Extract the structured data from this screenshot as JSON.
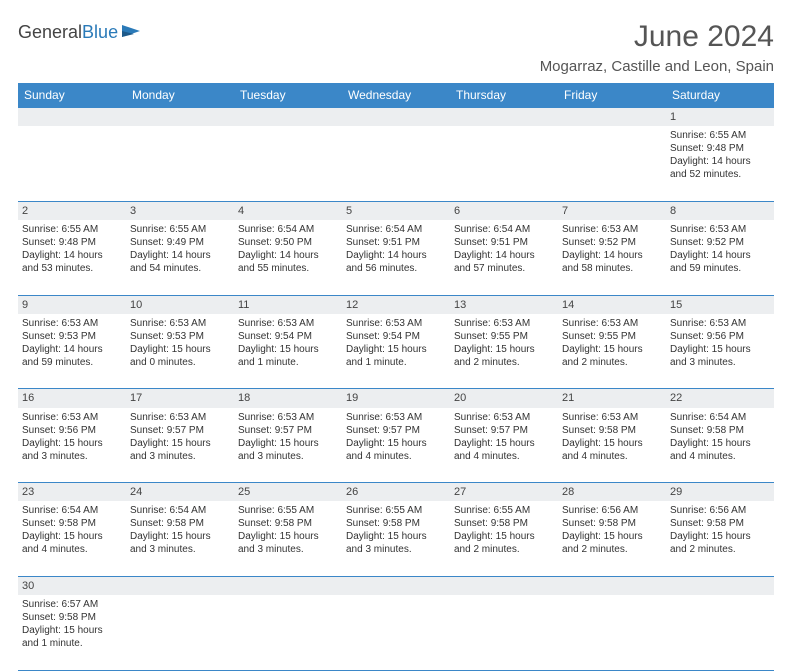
{
  "brand": {
    "part1": "General",
    "part2": "Blue"
  },
  "title": "June 2024",
  "location": "Mogarraz, Castille and Leon, Spain",
  "header_bg": "#3b87c8",
  "daynum_bg": "#eceef0",
  "days": [
    "Sunday",
    "Monday",
    "Tuesday",
    "Wednesday",
    "Thursday",
    "Friday",
    "Saturday"
  ],
  "weeks": [
    {
      "nums": [
        "",
        "",
        "",
        "",
        "",
        "",
        "1"
      ],
      "cells": [
        null,
        null,
        null,
        null,
        null,
        null,
        {
          "sunrise": "6:55 AM",
          "sunset": "9:48 PM",
          "daylight": "14 hours and 52 minutes."
        }
      ]
    },
    {
      "nums": [
        "2",
        "3",
        "4",
        "5",
        "6",
        "7",
        "8"
      ],
      "cells": [
        {
          "sunrise": "6:55 AM",
          "sunset": "9:48 PM",
          "daylight": "14 hours and 53 minutes."
        },
        {
          "sunrise": "6:55 AM",
          "sunset": "9:49 PM",
          "daylight": "14 hours and 54 minutes."
        },
        {
          "sunrise": "6:54 AM",
          "sunset": "9:50 PM",
          "daylight": "14 hours and 55 minutes."
        },
        {
          "sunrise": "6:54 AM",
          "sunset": "9:51 PM",
          "daylight": "14 hours and 56 minutes."
        },
        {
          "sunrise": "6:54 AM",
          "sunset": "9:51 PM",
          "daylight": "14 hours and 57 minutes."
        },
        {
          "sunrise": "6:53 AM",
          "sunset": "9:52 PM",
          "daylight": "14 hours and 58 minutes."
        },
        {
          "sunrise": "6:53 AM",
          "sunset": "9:52 PM",
          "daylight": "14 hours and 59 minutes."
        }
      ]
    },
    {
      "nums": [
        "9",
        "10",
        "11",
        "12",
        "13",
        "14",
        "15"
      ],
      "cells": [
        {
          "sunrise": "6:53 AM",
          "sunset": "9:53 PM",
          "daylight": "14 hours and 59 minutes."
        },
        {
          "sunrise": "6:53 AM",
          "sunset": "9:53 PM",
          "daylight": "15 hours and 0 minutes."
        },
        {
          "sunrise": "6:53 AM",
          "sunset": "9:54 PM",
          "daylight": "15 hours and 1 minute."
        },
        {
          "sunrise": "6:53 AM",
          "sunset": "9:54 PM",
          "daylight": "15 hours and 1 minute."
        },
        {
          "sunrise": "6:53 AM",
          "sunset": "9:55 PM",
          "daylight": "15 hours and 2 minutes."
        },
        {
          "sunrise": "6:53 AM",
          "sunset": "9:55 PM",
          "daylight": "15 hours and 2 minutes."
        },
        {
          "sunrise": "6:53 AM",
          "sunset": "9:56 PM",
          "daylight": "15 hours and 3 minutes."
        }
      ]
    },
    {
      "nums": [
        "16",
        "17",
        "18",
        "19",
        "20",
        "21",
        "22"
      ],
      "cells": [
        {
          "sunrise": "6:53 AM",
          "sunset": "9:56 PM",
          "daylight": "15 hours and 3 minutes."
        },
        {
          "sunrise": "6:53 AM",
          "sunset": "9:57 PM",
          "daylight": "15 hours and 3 minutes."
        },
        {
          "sunrise": "6:53 AM",
          "sunset": "9:57 PM",
          "daylight": "15 hours and 3 minutes."
        },
        {
          "sunrise": "6:53 AM",
          "sunset": "9:57 PM",
          "daylight": "15 hours and 4 minutes."
        },
        {
          "sunrise": "6:53 AM",
          "sunset": "9:57 PM",
          "daylight": "15 hours and 4 minutes."
        },
        {
          "sunrise": "6:53 AM",
          "sunset": "9:58 PM",
          "daylight": "15 hours and 4 minutes."
        },
        {
          "sunrise": "6:54 AM",
          "sunset": "9:58 PM",
          "daylight": "15 hours and 4 minutes."
        }
      ]
    },
    {
      "nums": [
        "23",
        "24",
        "25",
        "26",
        "27",
        "28",
        "29"
      ],
      "cells": [
        {
          "sunrise": "6:54 AM",
          "sunset": "9:58 PM",
          "daylight": "15 hours and 4 minutes."
        },
        {
          "sunrise": "6:54 AM",
          "sunset": "9:58 PM",
          "daylight": "15 hours and 3 minutes."
        },
        {
          "sunrise": "6:55 AM",
          "sunset": "9:58 PM",
          "daylight": "15 hours and 3 minutes."
        },
        {
          "sunrise": "6:55 AM",
          "sunset": "9:58 PM",
          "daylight": "15 hours and 3 minutes."
        },
        {
          "sunrise": "6:55 AM",
          "sunset": "9:58 PM",
          "daylight": "15 hours and 2 minutes."
        },
        {
          "sunrise": "6:56 AM",
          "sunset": "9:58 PM",
          "daylight": "15 hours and 2 minutes."
        },
        {
          "sunrise": "6:56 AM",
          "sunset": "9:58 PM",
          "daylight": "15 hours and 2 minutes."
        }
      ]
    },
    {
      "nums": [
        "30",
        "",
        "",
        "",
        "",
        "",
        ""
      ],
      "cells": [
        {
          "sunrise": "6:57 AM",
          "sunset": "9:58 PM",
          "daylight": "15 hours and 1 minute."
        },
        null,
        null,
        null,
        null,
        null,
        null
      ]
    }
  ],
  "labels": {
    "sunrise": "Sunrise:",
    "sunset": "Sunset:",
    "daylight": "Daylight:"
  }
}
